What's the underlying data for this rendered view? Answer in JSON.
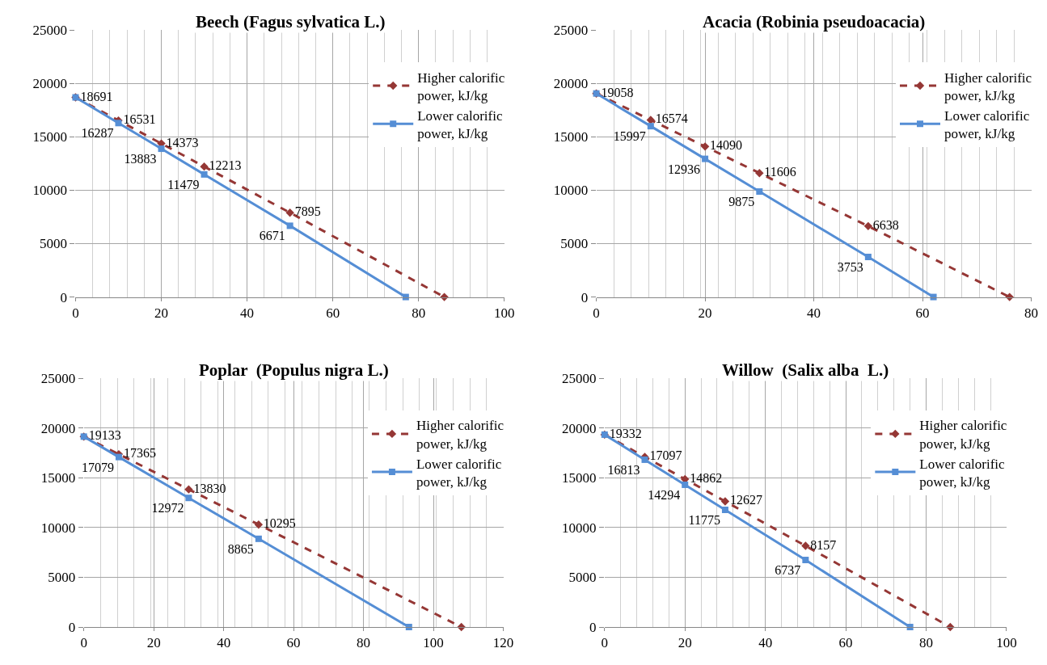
{
  "chart_data": [
    {
      "type": "line",
      "title": "Beech (Fagus sylvatica L.)",
      "xlim": [
        0,
        100
      ],
      "xticks": [
        0,
        20,
        40,
        60,
        80,
        100
      ],
      "ylim": [
        0,
        25000
      ],
      "yticks": [
        0,
        5000,
        10000,
        15000,
        20000,
        25000
      ],
      "grid": true,
      "legend": "top right",
      "series": [
        {
          "name": "Higher calorific power, kJ/kg",
          "color": "#953735",
          "line_style": "dashed",
          "marker": "diamond",
          "x": [
            0,
            10,
            20,
            30,
            50,
            86
          ],
          "values": [
            18691,
            16531,
            14373,
            12213,
            7895,
            0
          ],
          "value_labels": [
            "18691",
            "16531",
            "14373",
            "12213",
            "7895",
            null
          ]
        },
        {
          "name": "Lower calorific power, kJ/kg",
          "color": "#558ed5",
          "line_style": "solid",
          "marker": "square",
          "x": [
            0,
            10,
            20,
            30,
            50,
            77
          ],
          "values": [
            18691,
            16287,
            13883,
            11479,
            6671,
            0
          ],
          "value_labels": [
            null,
            "16287",
            "13883",
            "11479",
            "6671",
            null
          ]
        }
      ]
    },
    {
      "type": "line",
      "title": "Acacia (Robinia pseudoacacia)",
      "xlim": [
        0,
        80
      ],
      "xticks": [
        0,
        20,
        40,
        60,
        80
      ],
      "ylim": [
        0,
        25000
      ],
      "yticks": [
        0,
        5000,
        10000,
        15000,
        20000,
        25000
      ],
      "grid": true,
      "legend": "top right",
      "series": [
        {
          "name": "Higher calorific power, kJ/kg",
          "color": "#953735",
          "line_style": "dashed",
          "marker": "diamond",
          "x": [
            0,
            10,
            20,
            30,
            50,
            76
          ],
          "values": [
            19058,
            16574,
            14090,
            11606,
            6638,
            0
          ],
          "value_labels": [
            "19058",
            "16574",
            "14090",
            "11606",
            "6638",
            null
          ]
        },
        {
          "name": "Lower calorific power, kJ/kg",
          "color": "#558ed5",
          "line_style": "solid",
          "marker": "square",
          "x": [
            0,
            10,
            20,
            30,
            50,
            62
          ],
          "values": [
            19058,
            15997,
            12936,
            9875,
            3753,
            0
          ],
          "value_labels": [
            null,
            "15997",
            "12936",
            "9875",
            "3753",
            null
          ]
        }
      ]
    },
    {
      "type": "line",
      "title": "Poplar  (Populus nigra L.)",
      "xlim": [
        0,
        120
      ],
      "xticks": [
        0,
        20,
        40,
        60,
        80,
        100,
        120
      ],
      "ylim": [
        0,
        25000
      ],
      "yticks": [
        0,
        5000,
        10000,
        15000,
        20000,
        25000
      ],
      "grid": true,
      "legend": "top right",
      "series": [
        {
          "name": "Higher calorific power, kJ/kg",
          "color": "#953735",
          "line_style": "dashed",
          "marker": "diamond",
          "x": [
            0,
            10,
            30,
            50,
            108
          ],
          "values": [
            19133,
            17365,
            13830,
            10295,
            0
          ],
          "value_labels": [
            "19133",
            "17365",
            "13830",
            "10295",
            null
          ]
        },
        {
          "name": "Lower calorific power, kJ/kg",
          "color": "#558ed5",
          "line_style": "solid",
          "marker": "square",
          "x": [
            0,
            10,
            30,
            50,
            93
          ],
          "values": [
            19133,
            17079,
            12972,
            8865,
            0
          ],
          "value_labels": [
            null,
            "17079",
            "12972",
            "8865",
            null
          ]
        }
      ]
    },
    {
      "type": "line",
      "title": "Willow  (Salix alba  L.)",
      "xlim": [
        0,
        100
      ],
      "xticks": [
        0,
        20,
        40,
        60,
        80,
        100
      ],
      "ylim": [
        0,
        25000
      ],
      "yticks": [
        0,
        5000,
        10000,
        15000,
        20000,
        25000
      ],
      "grid": true,
      "legend": "top right",
      "series": [
        {
          "name": "Higher calorific power, kJ/kg",
          "color": "#953735",
          "line_style": "dashed",
          "marker": "diamond",
          "x": [
            0,
            10,
            20,
            30,
            50,
            86
          ],
          "values": [
            19332,
            17097,
            14862,
            12627,
            8157,
            0
          ],
          "value_labels": [
            "19332",
            "17097",
            "14862",
            "12627",
            "8157",
            null
          ]
        },
        {
          "name": "Lower calorific power, kJ/kg",
          "color": "#558ed5",
          "line_style": "solid",
          "marker": "square",
          "x": [
            0,
            10,
            20,
            30,
            50,
            76
          ],
          "values": [
            19332,
            16813,
            14294,
            11775,
            6737,
            0
          ],
          "value_labels": [
            null,
            "16813",
            "14294",
            "11775",
            "6737",
            null
          ]
        }
      ]
    }
  ]
}
